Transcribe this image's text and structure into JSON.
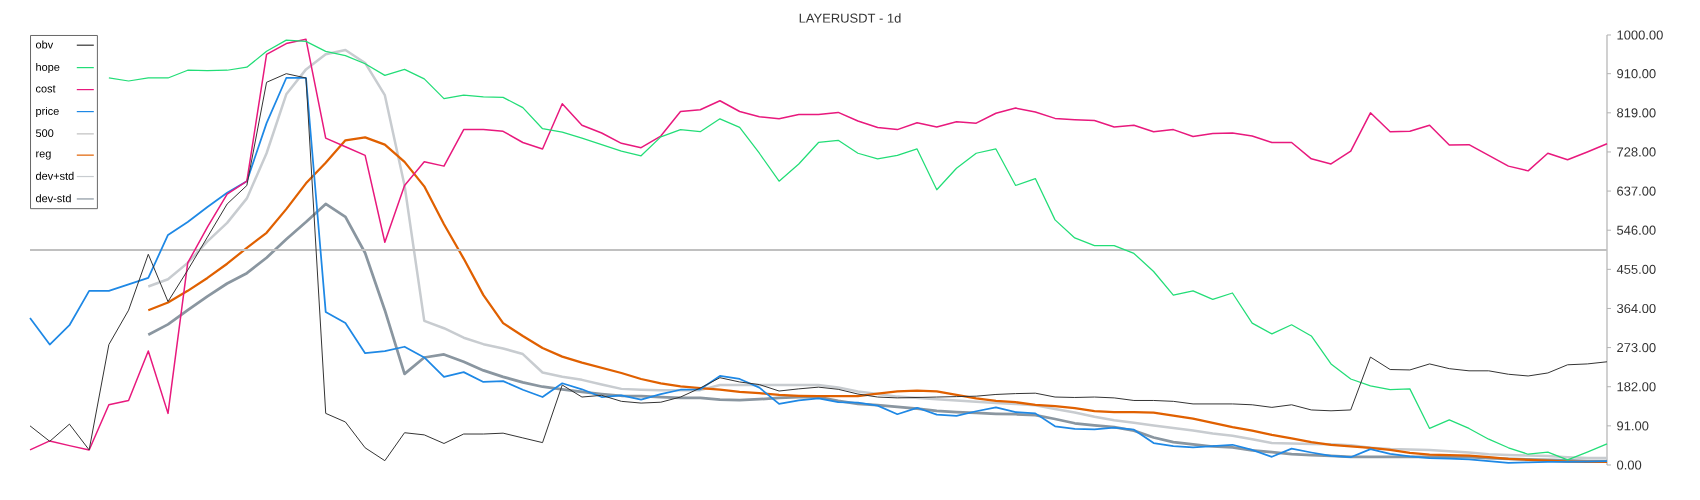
{
  "chart_data": {
    "type": "line",
    "title": "LAYERUSDT - 1d",
    "categories": [
      null,
      null,
      null,
      null,
      null,
      null,
      null,
      null,
      null,
      null,
      null,
      null,
      null,
      null,
      null,
      null,
      null,
      null,
      null,
      null,
      null,
      null,
      null,
      null,
      null,
      null,
      null,
      null,
      null,
      null,
      null,
      null,
      null,
      null,
      null,
      null,
      null,
      null,
      null,
      null,
      null,
      null,
      null,
      null,
      null,
      null,
      null,
      null,
      null,
      null,
      null,
      null,
      null,
      null,
      null,
      null,
      null,
      null,
      null,
      null,
      null,
      null,
      null,
      null,
      null,
      null,
      null,
      null,
      null,
      null,
      null,
      null,
      null,
      null,
      null,
      null,
      null,
      null,
      null,
      null,
      null
    ],
    "series": [
      {
        "name": "obv",
        "color": "#333333",
        "values": [
          91,
          55,
          95,
          35,
          280,
          360,
          490,
          380,
          453,
          530,
          607,
          650,
          890,
          910,
          900,
          120,
          100,
          40,
          10,
          75,
          70,
          50,
          72,
          72,
          74,
          63,
          52,
          186,
          158,
          162,
          148,
          144,
          146,
          158,
          179,
          203,
          193,
          187,
          172,
          177,
          181,
          176,
          165,
          158,
          156,
          157,
          158,
          159,
          160,
          164,
          166,
          167,
          158,
          157,
          158,
          156,
          150,
          150,
          148,
          142,
          142,
          142,
          140,
          134,
          140,
          128,
          126,
          128,
          251,
          222,
          221,
          235,
          224,
          219,
          219,
          211,
          207,
          214,
          233,
          235,
          240
        ]
      },
      {
        "name": "hope",
        "color": "#22dd77",
        "values": [
          null,
          null,
          null,
          null,
          900,
          893,
          900,
          900,
          918,
          917,
          918,
          925,
          962,
          988,
          985,
          962,
          952,
          933,
          906,
          920,
          898,
          852,
          860,
          856,
          855,
          831,
          782,
          774,
          760,
          745,
          730,
          719,
          763,
          780,
          775,
          805,
          785,
          725,
          660,
          700,
          750,
          755,
          725,
          712,
          720,
          735,
          640,
          690,
          725,
          735,
          650,
          666,
          570,
          528,
          510,
          510,
          492,
          450,
          395,
          405,
          385,
          400,
          330,
          305,
          326,
          300,
          235,
          200,
          184,
          175,
          177,
          85,
          105,
          85,
          60,
          40,
          25,
          30,
          12,
          30,
          49
        ]
      },
      {
        "name": "cost",
        "color": "#e8197d",
        "values": [
          35,
          56,
          45,
          35,
          140,
          150,
          265,
          120,
          470,
          553,
          630,
          660,
          955,
          980,
          990,
          760,
          740,
          720,
          518,
          650,
          705,
          695,
          780,
          780,
          776,
          750,
          735,
          840,
          790,
          772,
          748,
          738,
          765,
          822,
          826,
          847,
          822,
          810,
          805,
          815,
          815,
          820,
          800,
          785,
          780,
          796,
          786,
          798,
          795,
          818,
          830,
          821,
          806,
          803,
          801,
          786,
          790,
          775,
          780,
          764,
          771,
          772,
          765,
          750,
          750,
          712,
          700,
          730,
          819,
          775,
          776,
          790,
          744,
          745,
          720,
          695,
          684,
          725,
          710,
          728,
          747
        ]
      },
      {
        "name": "price",
        "color": "#1e88e5",
        "values": [
          342,
          280,
          325,
          405,
          405,
          420,
          435,
          535,
          565,
          600,
          633,
          660,
          795,
          900,
          900,
          356,
          330,
          260,
          265,
          275,
          250,
          205,
          216,
          193,
          195,
          175,
          158,
          190,
          176,
          158,
          162,
          152,
          165,
          175,
          176,
          207,
          200,
          180,
          142,
          150,
          155,
          146,
          145,
          138,
          118,
          133,
          117,
          114,
          125,
          134,
          123,
          120,
          90,
          84,
          83,
          87,
          82,
          51,
          44,
          41,
          44,
          47,
          35,
          19,
          38,
          29,
          21,
          18,
          37,
          26,
          20,
          16,
          15,
          13,
          9,
          5,
          6,
          7,
          7,
          8,
          9
        ]
      },
      {
        "name": "500",
        "color": "#c0c0c0",
        "values": [
          500,
          500,
          500,
          500,
          500,
          500,
          500,
          500,
          500,
          500,
          500,
          500,
          500,
          500,
          500,
          500,
          500,
          500,
          500,
          500,
          500,
          500,
          500,
          500,
          500,
          500,
          500,
          500,
          500,
          500,
          500,
          500,
          500,
          500,
          500,
          500,
          500,
          500,
          500,
          500,
          500,
          500,
          500,
          500,
          500,
          500,
          500,
          500,
          500,
          500,
          500,
          500,
          500,
          500,
          500,
          500,
          500,
          500,
          500,
          500,
          500,
          500,
          500,
          500,
          500,
          500,
          500,
          500,
          500,
          500,
          500,
          500,
          500,
          500,
          500,
          500,
          500,
          500,
          500,
          500,
          500
        ]
      },
      {
        "name": "reg",
        "color": "#e06000",
        "values": [
          null,
          null,
          null,
          null,
          null,
          null,
          360,
          378,
          405,
          435,
          468,
          505,
          540,
          595,
          655,
          703,
          755,
          762,
          745,
          705,
          648,
          560,
          480,
          395,
          330,
          300,
          272,
          252,
          238,
          226,
          214,
          200,
          190,
          183,
          179,
          175,
          170,
          167,
          163,
          161,
          160,
          160,
          160,
          166,
          171,
          173,
          171,
          163,
          155,
          149,
          146,
          140,
          137,
          132,
          125,
          123,
          123,
          122,
          115,
          108,
          98,
          88,
          80,
          70,
          62,
          53,
          47,
          43,
          40,
          35,
          28,
          24,
          23,
          22,
          18,
          14,
          12,
          10,
          8,
          7,
          7
        ]
      },
      {
        "name": "dev+std",
        "color": "#c8ccd0",
        "values": [
          null,
          null,
          null,
          null,
          null,
          null,
          415,
          432,
          470,
          520,
          563,
          620,
          725,
          862,
          920,
          955,
          965,
          935,
          860,
          650,
          335,
          318,
          296,
          281,
          271,
          258,
          215,
          205,
          198,
          187,
          177,
          175,
          174,
          174,
          174,
          186,
          186,
          186,
          186,
          186,
          186,
          180,
          171,
          165,
          159,
          156,
          153,
          150,
          147,
          144,
          142,
          139,
          130,
          122,
          112,
          104,
          98,
          92,
          86,
          80,
          73,
          68,
          60,
          51,
          50,
          49,
          48,
          46,
          40,
          37,
          36,
          35,
          32,
          29,
          25,
          23,
          22,
          21,
          18,
          16,
          16
        ]
      },
      {
        "name": "dev-std",
        "color": "#8a96a0",
        "values": [
          null,
          null,
          null,
          null,
          null,
          null,
          303,
          327,
          360,
          392,
          422,
          446,
          482,
          525,
          565,
          607,
          577,
          493,
          360,
          212,
          250,
          257,
          240,
          220,
          205,
          192,
          182,
          176,
          170,
          165,
          161,
          160,
          158,
          156,
          156,
          152,
          151,
          153,
          156,
          158,
          158,
          149,
          142,
          139,
          135,
          131,
          126,
          123,
          121,
          119,
          118,
          116,
          107,
          97,
          92,
          88,
          80,
          64,
          53,
          48,
          43,
          41,
          34,
          30,
          25,
          23,
          21,
          19,
          19,
          19,
          19,
          19,
          19,
          18,
          16,
          14,
          13,
          12,
          11,
          9,
          9
        ]
      }
    ],
    "ylim": [
      0,
      1000
    ],
    "yticks": [
      {
        "value": 0,
        "label": "0.00"
      },
      {
        "value": 91,
        "label": "91.00"
      },
      {
        "value": 182,
        "label": "182.00"
      },
      {
        "value": 273,
        "label": "273.00"
      },
      {
        "value": 364,
        "label": "364.00"
      },
      {
        "value": 455,
        "label": "455.00"
      },
      {
        "value": 546,
        "label": "546.00"
      },
      {
        "value": 637,
        "label": "637.00"
      },
      {
        "value": 728,
        "label": "728.00"
      },
      {
        "value": 819,
        "label": "819.00"
      },
      {
        "value": 910,
        "label": "910.00"
      },
      {
        "value": 1000,
        "label": "1000.00"
      }
    ],
    "legend": "top left",
    "line_style": "solid",
    "marker": "none"
  }
}
